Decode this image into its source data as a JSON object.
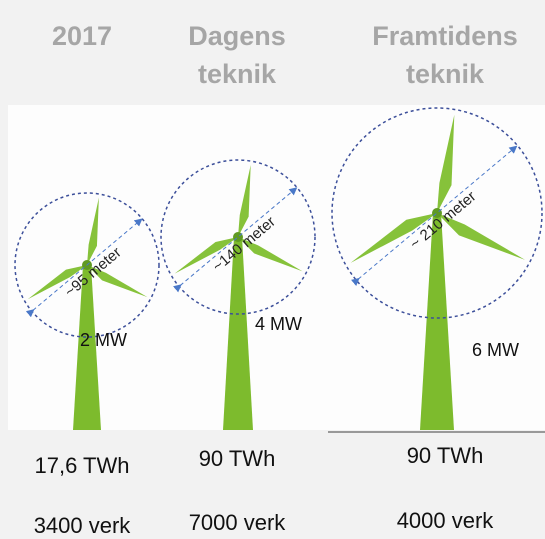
{
  "columns": [
    {
      "title": [
        "2017"
      ],
      "diameter": "~95 meter",
      "power": "2 MW",
      "energy": "17,6 TWh",
      "plants": "3400 verk"
    },
    {
      "title": [
        "Dagens",
        "teknik"
      ],
      "diameter": "~140 meter",
      "power": "4 MW",
      "energy": "90 TWh",
      "plants": "7000 verk"
    },
    {
      "title": [
        "Framtidens",
        "teknik"
      ],
      "diameter": "~ 210 meter",
      "power": "6 MW",
      "energy": "90 TWh",
      "plants": "4000 verk"
    }
  ]
}
